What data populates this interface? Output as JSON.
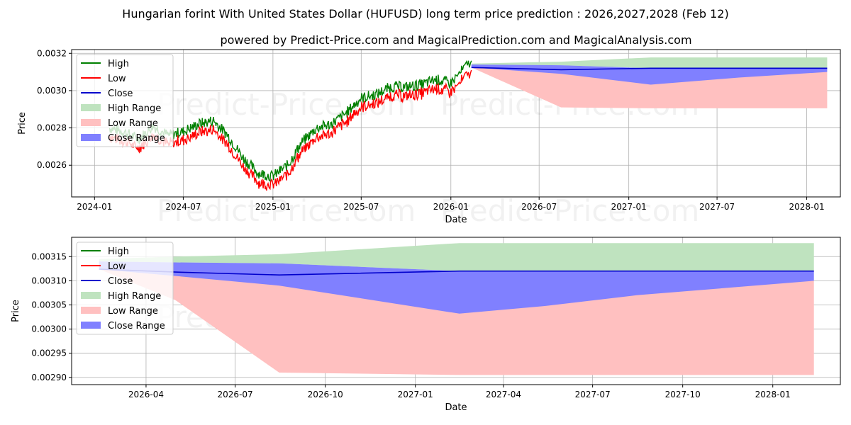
{
  "title": "Hungarian forint With United States Dollar (HUFUSD) long term price prediction : 2026,2027,2028 (Feb 12)",
  "subtitle": "powered by Predict-Price.com and MagicalPrediction.com and MagicalAnalysis.com",
  "watermark": "Predict-Price.com",
  "colors": {
    "high": "#008000",
    "low": "#ff0000",
    "close": "#0000cc",
    "high_range": "#bfe3bf",
    "low_range": "#ffc0c0",
    "close_range": "#8080ff"
  },
  "chart_data": [
    {
      "type": "line",
      "name": "overview",
      "xlabel": "Date",
      "ylabel": "Price",
      "xlim": [
        "2023-11-15",
        "2028-03-10"
      ],
      "ylim": [
        0.00243,
        0.00322
      ],
      "x_ticks": [
        {
          "date": "2024-01-01",
          "label": "2024-01"
        },
        {
          "date": "2024-07-01",
          "label": "2024-07"
        },
        {
          "date": "2025-01-01",
          "label": "2025-01"
        },
        {
          "date": "2025-07-01",
          "label": "2025-07"
        },
        {
          "date": "2026-01-01",
          "label": "2026-01"
        },
        {
          "date": "2026-07-01",
          "label": "2026-07"
        },
        {
          "date": "2027-01-01",
          "label": "2027-01"
        },
        {
          "date": "2027-07-01",
          "label": "2027-07"
        },
        {
          "date": "2028-01-01",
          "label": "2028-01"
        }
      ],
      "y_ticks": [
        {
          "value": 0.0026,
          "label": "0.0026"
        },
        {
          "value": 0.0028,
          "label": "0.0028"
        },
        {
          "value": 0.003,
          "label": "0.0030"
        },
        {
          "value": 0.0032,
          "label": "0.0032"
        }
      ],
      "grid": true,
      "legend_position": "top-left",
      "legend": [
        "High",
        "Low",
        "Close",
        "High Range",
        "Low Range",
        "Close Range"
      ],
      "history": {
        "dates": [
          "2024-02-01",
          "2024-03-01",
          "2024-04-01",
          "2024-05-01",
          "2024-06-01",
          "2024-07-01",
          "2024-08-01",
          "2024-09-01",
          "2024-10-01",
          "2024-11-01",
          "2024-12-01",
          "2025-01-01",
          "2025-02-01",
          "2025-03-01",
          "2025-04-01",
          "2025-05-01",
          "2025-06-01",
          "2025-07-01",
          "2025-08-01",
          "2025-09-01",
          "2025-10-01",
          "2025-11-01",
          "2025-12-01",
          "2026-01-01",
          "2026-02-12"
        ],
        "high": [
          0.0028,
          0.00278,
          0.00274,
          0.00281,
          0.00276,
          0.00278,
          0.00282,
          0.00284,
          0.00276,
          0.00264,
          0.00256,
          0.00254,
          0.0026,
          0.00272,
          0.0028,
          0.00282,
          0.00288,
          0.00296,
          0.00298,
          0.00302,
          0.00302,
          0.00303,
          0.00306,
          0.00304,
          0.00316
        ],
        "low": [
          0.00276,
          0.00274,
          0.0027,
          0.00277,
          0.00272,
          0.00274,
          0.00278,
          0.0028,
          0.00272,
          0.0026,
          0.00252,
          0.0025,
          0.00256,
          0.00268,
          0.00276,
          0.00278,
          0.00284,
          0.00292,
          0.00294,
          0.00298,
          0.00298,
          0.00299,
          0.00302,
          0.003,
          0.00311
        ]
      },
      "forecast": {
        "dates": [
          "2026-02-12",
          "2026-08-15",
          "2027-02-15",
          "2027-08-15",
          "2028-02-12"
        ],
        "close": [
          0.003124,
          0.003112,
          0.00312,
          0.00312,
          0.00312
        ],
        "high_max": [
          0.003145,
          0.003155,
          0.003178,
          0.003178,
          0.003178
        ],
        "low_min": [
          0.003124,
          0.00291,
          0.002905,
          0.002905,
          0.002905
        ],
        "close_lo": [
          0.003124,
          0.00309,
          0.003032,
          0.00307,
          0.0031
        ],
        "close_hi": [
          0.00314,
          0.003136,
          0.00312,
          0.00312,
          0.00312
        ],
        "low_hi": [
          0.003124,
          0.003112,
          0.00312,
          0.00312,
          0.0031
        ]
      }
    },
    {
      "type": "line",
      "name": "forecast-detail",
      "xlabel": "Date",
      "ylabel": "Price",
      "xlim": [
        "2026-01-15",
        "2028-03-10"
      ],
      "ylim": [
        0.002885,
        0.00319
      ],
      "x_ticks": [
        {
          "date": "2026-04-01",
          "label": "2026-04"
        },
        {
          "date": "2026-07-01",
          "label": "2026-07"
        },
        {
          "date": "2026-10-01",
          "label": "2026-10"
        },
        {
          "date": "2027-01-01",
          "label": "2027-01"
        },
        {
          "date": "2027-04-01",
          "label": "2027-04"
        },
        {
          "date": "2027-07-01",
          "label": "2027-07"
        },
        {
          "date": "2027-10-01",
          "label": "2027-10"
        },
        {
          "date": "2028-01-01",
          "label": "2028-01"
        }
      ],
      "y_ticks": [
        {
          "value": 0.0029,
          "label": "0.00290"
        },
        {
          "value": 0.00295,
          "label": "0.00295"
        },
        {
          "value": 0.003,
          "label": "0.00300"
        },
        {
          "value": 0.00305,
          "label": "0.00305"
        },
        {
          "value": 0.0031,
          "label": "0.00310"
        },
        {
          "value": 0.00315,
          "label": "0.00315"
        }
      ],
      "grid": true,
      "legend_position": "top-left",
      "legend": [
        "High",
        "Low",
        "Close",
        "High Range",
        "Low Range",
        "Close Range"
      ],
      "forecast": {
        "dates": [
          "2026-02-12",
          "2026-05-01",
          "2026-08-15",
          "2027-02-15",
          "2027-05-15",
          "2027-08-15",
          "2028-02-12"
        ],
        "close": [
          0.003124,
          0.003118,
          0.003112,
          0.00312,
          0.00312,
          0.00312,
          0.00312
        ],
        "high_max": [
          0.003145,
          0.00315,
          0.003155,
          0.003178,
          0.003178,
          0.003178,
          0.003178
        ],
        "low_min": [
          0.003124,
          0.00306,
          0.00291,
          0.002905,
          0.002905,
          0.002905,
          0.002905
        ],
        "close_lo": [
          0.003124,
          0.00311,
          0.00309,
          0.003032,
          0.003048,
          0.00307,
          0.0031
        ],
        "close_hi": [
          0.00314,
          0.003138,
          0.003136,
          0.00312,
          0.00312,
          0.00312,
          0.00312
        ],
        "low_hi": [
          0.003124,
          0.003118,
          0.003112,
          0.00312,
          0.00312,
          0.00312,
          0.0031
        ]
      }
    }
  ]
}
